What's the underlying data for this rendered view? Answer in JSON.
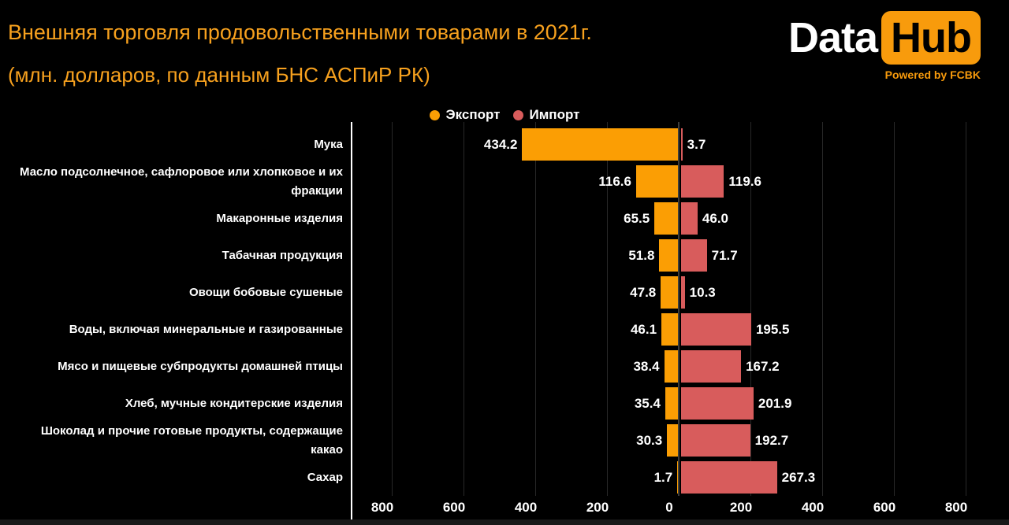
{
  "header": {
    "title": "Внешняя торговля продовольственными товарами в 2021г.",
    "subtitle": "(млн. долларов, по данным БНС АСПиР РК)",
    "title_color": "#F7A11E"
  },
  "logo": {
    "part1": "Data",
    "part2": "Hub",
    "tagline": "Powered by FCBK",
    "badge_color": "#F89B0C"
  },
  "legend": {
    "export_label": "Экспорт",
    "import_label": "Импорт",
    "export_color": "#FB9E04",
    "import_color": "#D85C5C"
  },
  "chart_data": {
    "type": "bar",
    "orientation": "horizontal-diverging",
    "title": "Внешняя торговля продовольственными товарами в 2021г.",
    "subtitle": "(млн. долларов, по данным БНС АСПиР РК)",
    "xlabel": "",
    "ylabel": "",
    "grid": true,
    "legend_position": "top-center",
    "axis_range_abs": 910,
    "background": "#000000",
    "categories": [
      "Мука",
      "Масло подсолнечное, сафлоровое или хлопковое и их\nфракции",
      "Макаронные изделия",
      "Табачная продукция",
      "Овощи бобовые сушеные",
      "Воды, включая минеральные и газированные",
      "Мясо и пищевые субпродукты домашней птицы",
      "Хлеб, мучные кондитерские изделия",
      "Шоколад и прочие готовые продукты, содержащие\nкакао",
      "Сахар"
    ],
    "series": [
      {
        "name": "Экспорт",
        "color": "#FB9E04",
        "direction": "left",
        "values": [
          434.2,
          116.6,
          65.5,
          51.8,
          47.8,
          46.1,
          38.4,
          35.4,
          30.3,
          1.7
        ],
        "labels": [
          "434.2",
          "116.6",
          "65.5",
          "51.8",
          "47.8",
          "46.1",
          "38.4",
          "35.4",
          "30.3",
          "1.7"
        ]
      },
      {
        "name": "Импорт",
        "color": "#D85C5C",
        "direction": "right",
        "values": [
          3.7,
          119.6,
          46.0,
          71.7,
          10.3,
          195.5,
          167.2,
          201.9,
          192.7,
          267.3
        ],
        "labels": [
          "3.7",
          "119.6",
          "46.0",
          "71.7",
          "10.3",
          "195.5",
          "167.2",
          "201.9",
          "192.7",
          "267.3"
        ]
      }
    ],
    "axis_ticks": [
      {
        "label": "800",
        "value": -800
      },
      {
        "label": "600",
        "value": -600
      },
      {
        "label": "400",
        "value": -400
      },
      {
        "label": "200",
        "value": -200
      },
      {
        "label": "0",
        "value": 0
      },
      {
        "label": "200",
        "value": 200
      },
      {
        "label": "400",
        "value": 400
      },
      {
        "label": "600",
        "value": 600
      },
      {
        "label": "800",
        "value": 800
      }
    ]
  }
}
